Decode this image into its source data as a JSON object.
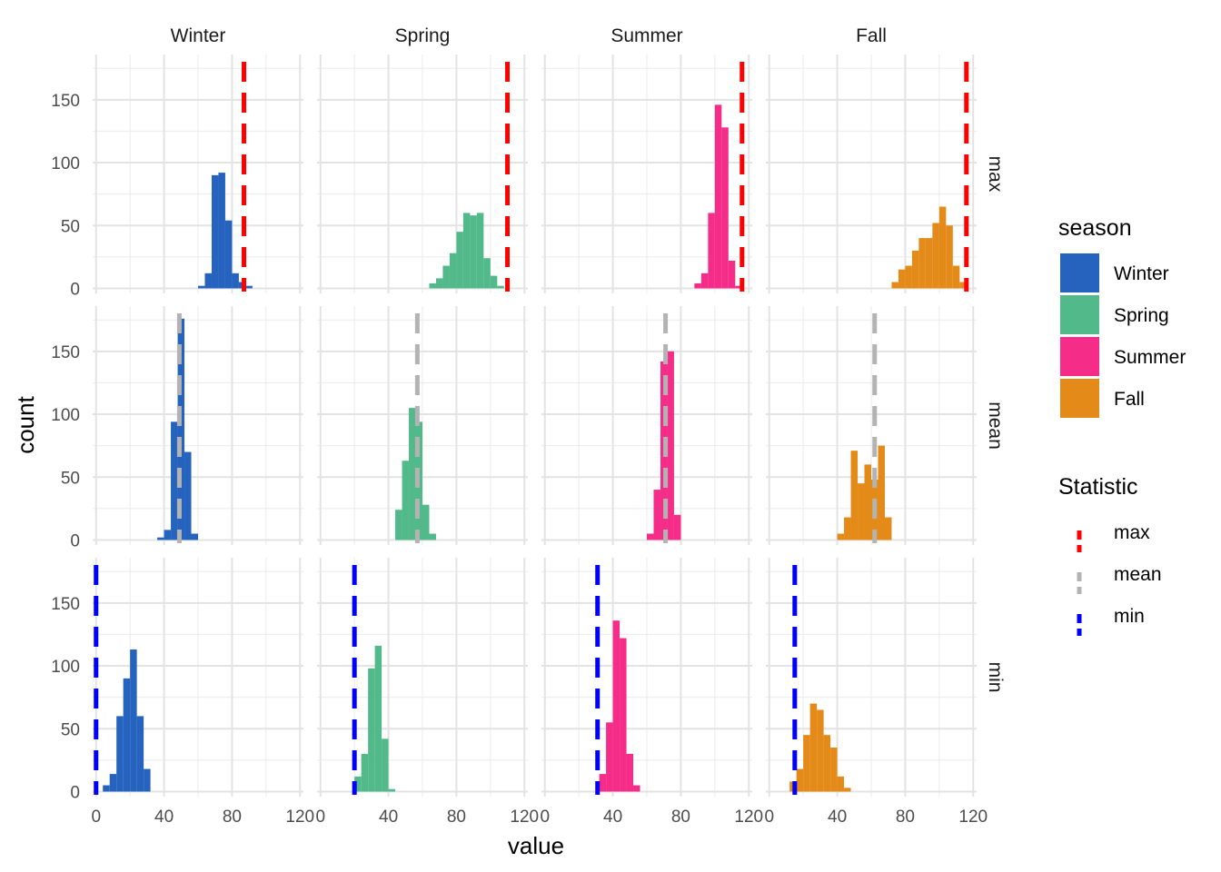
{
  "chart_data": {
    "type": "histogram-facet",
    "xlabel": "value",
    "ylabel": "count",
    "columns": [
      "Winter",
      "Spring",
      "Summer",
      "Fall"
    ],
    "rows": [
      "max",
      "mean",
      "min"
    ],
    "x_ticks": [
      "0",
      "40",
      "80",
      "120"
    ],
    "y_ticks": [
      "0",
      "50",
      "100",
      "150"
    ],
    "xlim": [
      -2,
      122
    ],
    "ylim": [
      -4,
      186
    ],
    "bin_width": 4,
    "colors": {
      "Winter": "#2563be",
      "Spring": "#52b98b",
      "Summer": "#f52d88",
      "Fall": "#e48a18"
    },
    "legend_season": {
      "title": "season",
      "items": [
        "Winter",
        "Spring",
        "Summer",
        "Fall"
      ]
    },
    "legend_statistic": {
      "title": "Statistic",
      "items": [
        {
          "label": "max",
          "color": "#ff0000"
        },
        {
          "label": "mean",
          "color": "#b3b3b3"
        },
        {
          "label": "min",
          "color": "#0000ff"
        }
      ]
    },
    "reference_lines": {
      "max": {
        "Winter": 87,
        "Spring": 110,
        "Summer": 116,
        "Fall": 116
      },
      "mean": {
        "Winter": 49,
        "Spring": 57,
        "Summer": 71,
        "Fall": 62
      },
      "min": {
        "Winter": 0,
        "Spring": 20,
        "Summer": 31,
        "Fall": 15
      }
    },
    "panels": [
      {
        "row": "max",
        "col": "Winter",
        "bins": [
          [
            60,
            2
          ],
          [
            64,
            12
          ],
          [
            68,
            90
          ],
          [
            72,
            92
          ],
          [
            76,
            54
          ],
          [
            80,
            12
          ],
          [
            84,
            5
          ],
          [
            88,
            2
          ]
        ]
      },
      {
        "row": "max",
        "col": "Spring",
        "bins": [
          [
            64,
            4
          ],
          [
            68,
            8
          ],
          [
            72,
            18
          ],
          [
            76,
            28
          ],
          [
            80,
            45
          ],
          [
            84,
            60
          ],
          [
            88,
            58
          ],
          [
            92,
            60
          ],
          [
            96,
            24
          ],
          [
            100,
            10
          ],
          [
            104,
            2
          ]
        ]
      },
      {
        "row": "max",
        "col": "Summer",
        "bins": [
          [
            88,
            4
          ],
          [
            92,
            12
          ],
          [
            96,
            60
          ],
          [
            100,
            146
          ],
          [
            104,
            128
          ],
          [
            108,
            22
          ],
          [
            112,
            2
          ]
        ]
      },
      {
        "row": "max",
        "col": "Fall",
        "bins": [
          [
            72,
            5
          ],
          [
            76,
            15
          ],
          [
            80,
            18
          ],
          [
            84,
            30
          ],
          [
            88,
            40
          ],
          [
            92,
            40
          ],
          [
            96,
            52
          ],
          [
            100,
            65
          ],
          [
            104,
            50
          ],
          [
            108,
            18
          ],
          [
            112,
            5
          ]
        ]
      },
      {
        "row": "mean",
        "col": "Winter",
        "bins": [
          [
            36,
            2
          ],
          [
            40,
            8
          ],
          [
            44,
            94
          ],
          [
            48,
            176
          ],
          [
            52,
            70
          ],
          [
            56,
            5
          ]
        ]
      },
      {
        "row": "mean",
        "col": "Spring",
        "bins": [
          [
            44,
            24
          ],
          [
            48,
            63
          ],
          [
            52,
            105
          ],
          [
            56,
            94
          ],
          [
            60,
            28
          ],
          [
            64,
            5
          ]
        ]
      },
      {
        "row": "mean",
        "col": "Summer",
        "bins": [
          [
            60,
            5
          ],
          [
            64,
            40
          ],
          [
            68,
            142
          ],
          [
            72,
            150
          ],
          [
            76,
            20
          ]
        ]
      },
      {
        "row": "mean",
        "col": "Fall",
        "bins": [
          [
            40,
            5
          ],
          [
            44,
            18
          ],
          [
            48,
            71
          ],
          [
            52,
            45
          ],
          [
            56,
            60
          ],
          [
            60,
            48
          ],
          [
            64,
            75
          ],
          [
            68,
            18
          ]
        ]
      },
      {
        "row": "min",
        "col": "Winter",
        "bins": [
          [
            4,
            5
          ],
          [
            8,
            14
          ],
          [
            12,
            60
          ],
          [
            16,
            90
          ],
          [
            20,
            113
          ],
          [
            24,
            60
          ],
          [
            28,
            18
          ]
        ]
      },
      {
        "row": "min",
        "col": "Spring",
        "bins": [
          [
            20,
            12
          ],
          [
            24,
            30
          ],
          [
            28,
            98
          ],
          [
            32,
            116
          ],
          [
            36,
            42
          ],
          [
            40,
            2
          ]
        ]
      },
      {
        "row": "min",
        "col": "Summer",
        "bins": [
          [
            32,
            14
          ],
          [
            36,
            55
          ],
          [
            40,
            136
          ],
          [
            44,
            122
          ],
          [
            48,
            30
          ],
          [
            52,
            5
          ]
        ]
      },
      {
        "row": "min",
        "col": "Fall",
        "bins": [
          [
            12,
            8
          ],
          [
            16,
            18
          ],
          [
            20,
            45
          ],
          [
            24,
            70
          ],
          [
            28,
            65
          ],
          [
            32,
            45
          ],
          [
            36,
            35
          ],
          [
            40,
            12
          ],
          [
            44,
            3
          ]
        ]
      }
    ]
  }
}
